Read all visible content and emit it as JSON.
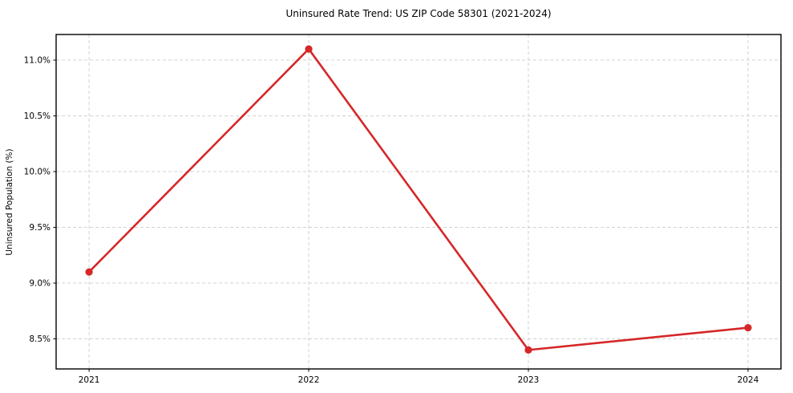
{
  "figure": {
    "background": "#ffffff",
    "frame_color": "#000000"
  },
  "chart_data": {
    "type": "line",
    "title": "Uninsured Rate Trend: US ZIP Code 58301 (2021-2024)",
    "xlabel": "",
    "ylabel": "Uninsured Population (%)",
    "x": [
      2021,
      2022,
      2023,
      2024
    ],
    "x_tick_labels": [
      "2021",
      "2022",
      "2023",
      "2024"
    ],
    "series": [
      {
        "name": "uninsured-rate",
        "values": [
          9.1,
          11.1,
          8.4,
          8.6
        ],
        "color": "#d62728",
        "marker": "circle"
      }
    ],
    "y_ticks": [
      8.5,
      9.0,
      9.5,
      10.0,
      10.5,
      11.0
    ],
    "y_tick_labels": [
      "8.5%",
      "9.0%",
      "9.5%",
      "10.0%",
      "10.5%",
      "11.0%"
    ],
    "ylim": [
      8.23,
      11.23
    ],
    "xlim": [
      2020.85,
      2024.15
    ],
    "grid": true,
    "grid_color": "#cccccc",
    "grid_dash": "4 3",
    "legend_position": "none"
  }
}
